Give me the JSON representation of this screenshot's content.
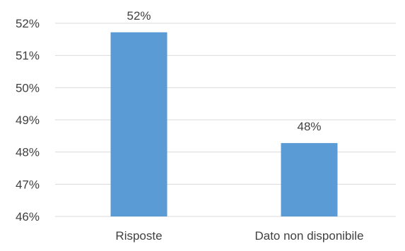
{
  "chart_data": {
    "type": "bar",
    "categories": [
      "Risposte",
      "Dato non disponibile"
    ],
    "values": [
      51.72,
      48.28
    ],
    "data_labels": [
      "52%",
      "48%"
    ],
    "ylim": [
      46,
      52
    ],
    "yticks": [
      46,
      47,
      48,
      49,
      50,
      51,
      52
    ],
    "ytick_labels": [
      "46%",
      "47%",
      "48%",
      "49%",
      "50%",
      "51%",
      "52%"
    ],
    "grid": true,
    "legend": "none",
    "bar_color": "#5B9BD5",
    "grid_color": "#D9D9D9",
    "text_color": "#404040"
  }
}
